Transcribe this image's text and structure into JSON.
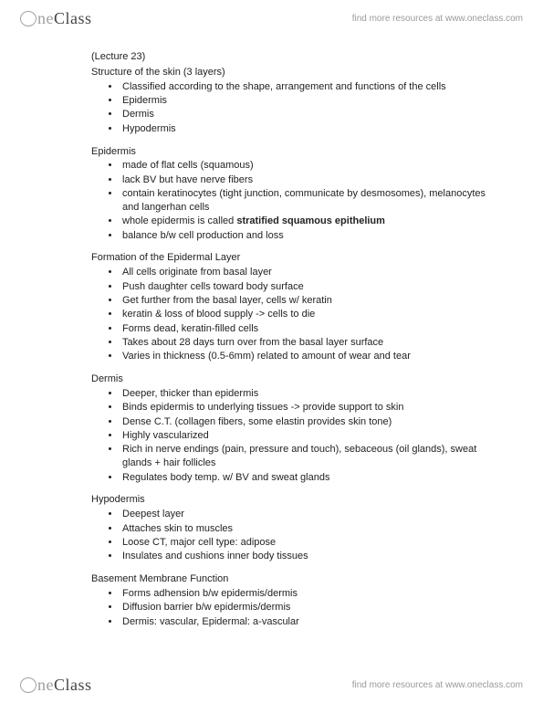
{
  "brand": {
    "word1": "ne",
    "word2": "Class",
    "tagline": "find more resources at www.oneclass.com"
  },
  "doc": {
    "lectureRef": "(Lecture 23)",
    "sections": [
      {
        "title": "Structure of the skin (3 layers)",
        "titleTopMargin": 0,
        "bullets": [
          [
            {
              "t": "Classified according to the shape, arrangement and functions of the cells"
            }
          ],
          [
            {
              "t": "Epidermis"
            }
          ],
          [
            {
              "t": "Dermis"
            }
          ],
          [
            {
              "t": "Hypodermis"
            }
          ]
        ]
      },
      {
        "title": "Epidermis",
        "bullets": [
          [
            {
              "t": "made of flat cells (squamous)"
            }
          ],
          [
            {
              "t": "lack BV but have nerve fibers"
            }
          ],
          [
            {
              "t": "contain keratinocytes (tight junction, communicate by desmosomes), melanocytes and langerhan cells"
            }
          ],
          [
            {
              "t": "whole epidermis is called "
            },
            {
              "t": "stratified squamous epithelium",
              "bold": true
            }
          ],
          [
            {
              "t": "balance b/w cell production and loss"
            }
          ]
        ]
      },
      {
        "title": "Formation of the Epidermal Layer",
        "bullets": [
          [
            {
              "t": "All cells originate from basal layer"
            }
          ],
          [
            {
              "t": "Push daughter cells toward body surface"
            }
          ],
          [
            {
              "t": "Get further from the basal layer, cells w/ keratin"
            }
          ],
          [
            {
              "t": " keratin & loss of blood supply -> cells to die"
            }
          ],
          [
            {
              "t": "Forms dead, keratin-filled cells"
            }
          ],
          [
            {
              "t": "Takes about 28 days turn over from the basal layer surface"
            }
          ],
          [
            {
              "t": "Varies in thickness (0.5-6mm) related to amount of wear and tear"
            }
          ]
        ]
      },
      {
        "title": "Dermis",
        "bullets": [
          [
            {
              "t": "Deeper, thicker than epidermis"
            }
          ],
          [
            {
              "t": "Binds epidermis to underlying tissues -> provide support to skin"
            }
          ],
          [
            {
              "t": "Dense C.T. (collagen fibers, some elastin provides skin tone)"
            }
          ],
          [
            {
              "t": "Highly vascularized"
            }
          ],
          [
            {
              "t": "Rich in nerve endings (pain, pressure and touch), sebaceous (oil glands), sweat glands + hair follicles"
            }
          ],
          [
            {
              "t": "Regulates body temp. w/ BV and sweat glands"
            }
          ]
        ]
      },
      {
        "title": "Hypodermis",
        "bullets": [
          [
            {
              "t": "Deepest layer"
            }
          ],
          [
            {
              "t": "Attaches skin to muscles"
            }
          ],
          [
            {
              "t": "Loose CT, major cell type: adipose"
            }
          ],
          [
            {
              "t": "Insulates and cushions inner body tissues"
            }
          ]
        ]
      },
      {
        "title": "Basement Membrane Function",
        "bullets": [
          [
            {
              "t": "Forms adhension b/w epidermis/dermis"
            }
          ],
          [
            {
              "t": "Diffusion barrier b/w epidermis/dermis"
            }
          ],
          [
            {
              "t": "Dermis: vascular, Epidermal: a-vascular"
            }
          ]
        ]
      }
    ]
  }
}
